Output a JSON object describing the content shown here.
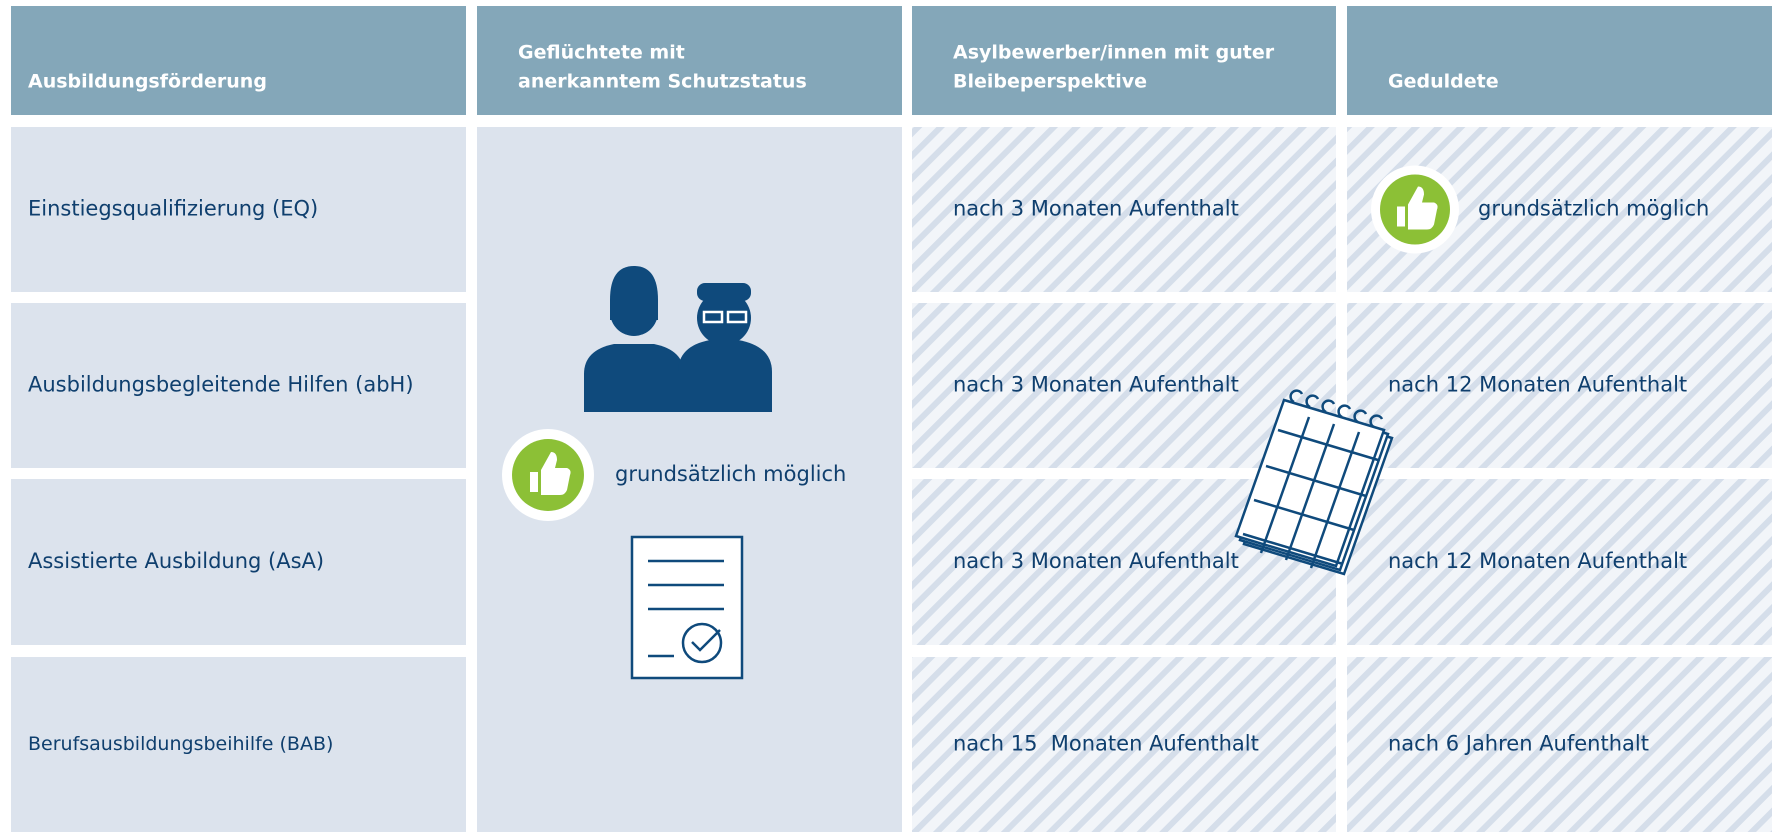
{
  "header": {
    "columns": [
      {
        "lines": [
          "Ausbildungsförderung"
        ]
      },
      {
        "lines": [
          "Geflüchtete mit",
          "anerkanntem Schutzstatus"
        ]
      },
      {
        "lines": [
          "Asylbewerber/innen mit guter",
          "Bleibeperspektive"
        ]
      },
      {
        "lines": [
          "Geduldete"
        ]
      }
    ]
  },
  "refugees_cell": "grundsätzlich möglich",
  "rows": [
    {
      "label": "Einstiegsqualifizierung (EQ)",
      "asylum": "nach 3 Monaten Aufenthalt",
      "tolerated": "grundsätzlich möglich"
    },
    {
      "label": "Ausbildungsbegleitende Hilfen (abH)",
      "asylum": "nach 3 Monaten Aufenthalt",
      "tolerated": "nach 12 Monaten Aufenthalt"
    },
    {
      "label": "Assistierte Ausbildung (AsA)",
      "asylum": "nach 3 Monaten Aufenthalt",
      "tolerated": "nach 12 Monaten Aufenthalt"
    },
    {
      "label": "Berufsausbildungsbeihilfe (BAB)",
      "asylum": "nach 15  Monaten Aufenthalt",
      "tolerated": "nach 6 Jahren Aufenthalt"
    }
  ]
}
